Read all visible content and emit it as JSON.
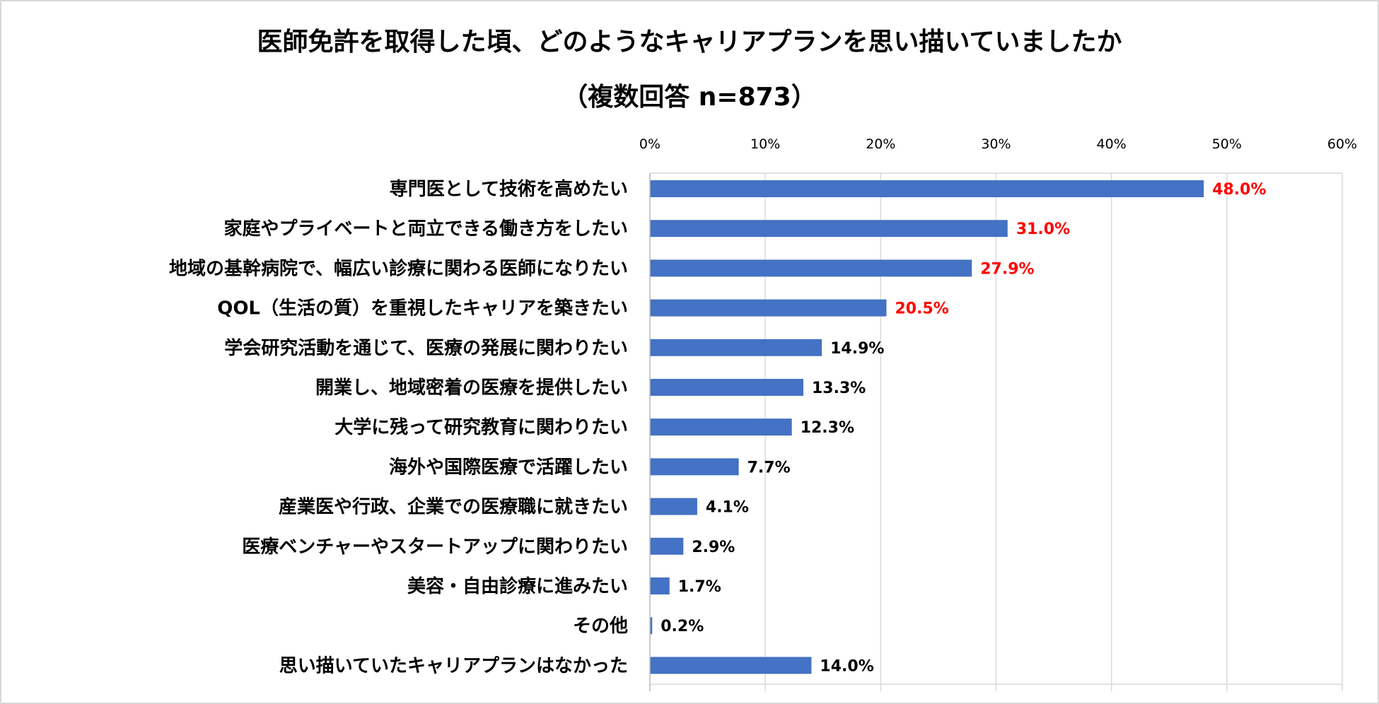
{
  "chart_data": {
    "type": "bar",
    "orientation": "horizontal",
    "title": "医師免許を取得した頃、どのようなキャリアプランを思い描いていましたか",
    "subtitle": "（複数回答 n=873）",
    "xlim": [
      0,
      60
    ],
    "x_ticks": [
      "0%",
      "10%",
      "20%",
      "30%",
      "40%",
      "50%",
      "60%"
    ],
    "grid": true,
    "categories": [
      "専門医として技術を高めたい",
      "家庭やプライベートと両立できる働き方をしたい",
      "地域の基幹病院で、幅広い診療に関わる医師になりたい",
      "QOL（生活の質）を重視したキャリアを築きたい",
      "学会研究活動を通じて、医療の発展に関わりたい",
      "開業し、地域密着の医療を提供したい",
      "大学に残って研究教育に関わりたい",
      "海外や国際医療で活躍したい",
      "産業医や行政、企業での医療職に就きたい",
      "医療ベンチャーやスタートアップに関わりたい",
      "美容・自由診療に進みたい",
      "その他",
      "思い描いていたキャリアプランはなかった"
    ],
    "values": [
      48.0,
      31.0,
      27.9,
      20.5,
      14.9,
      13.3,
      12.3,
      7.7,
      4.1,
      2.9,
      1.7,
      0.2,
      14.0
    ],
    "labels": [
      "48.0%",
      "31.0%",
      "27.9%",
      "20.5%",
      "14.9%",
      "13.3%",
      "12.3%",
      "7.7%",
      "4.1%",
      "2.9%",
      "1.7%",
      "0.2%",
      "14.0%"
    ],
    "highlight_top_n": 4,
    "colors": {
      "bar": "#4472c4",
      "highlight_label": "#ff0000",
      "label": "#000000",
      "grid": "#d9d9d9"
    }
  }
}
